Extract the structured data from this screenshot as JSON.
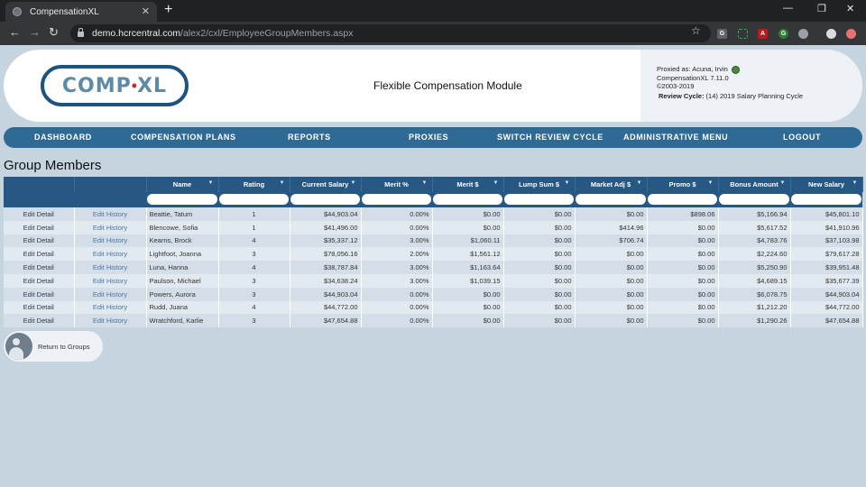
{
  "browser": {
    "tab_title": "CompensationXL",
    "tab_close": "✕",
    "new_tab": "+",
    "url_host": "demo.hcrcentral.com",
    "url_path": "/alex2/cxl/EmployeeGroupMembers.aspx"
  },
  "header": {
    "logo_left": "COMP",
    "logo_dot": "•",
    "logo_right": "XL",
    "module_title": "Flexible Compensation Module",
    "proxied_as": "Proxied as: Acuna, Irvin",
    "version": "CompensationXL 7.11.0",
    "copyright": "©2003-2019",
    "review_cycle_label": "Review Cycle:",
    "review_cycle_value": "(14) 2019 Salary Planning Cycle"
  },
  "nav": {
    "dashboard": "DASHBOARD",
    "plans": "COMPENSATION PLANS",
    "reports": "REPORTS",
    "proxies": "PROXIES",
    "switch": "SWITCH REVIEW CYCLE",
    "admin": "ADMINISTRATIVE MENU",
    "logout": "LOGOUT"
  },
  "page": {
    "title": "Group Members",
    "return_label": "Return to Groups"
  },
  "grid": {
    "filter_glyph": "▼",
    "columns": [
      "Name",
      "Rating",
      "Current Salary",
      "Merit %",
      "Merit $",
      "Lump Sum $",
      "Market Adj $",
      "Promo $",
      "Bonus Amount",
      "New Salary"
    ],
    "edit_detail": "Edit Detail",
    "edit_history": "Edit History",
    "rows": [
      [
        "Beattie, Tatum",
        "1",
        "$44,903.04",
        "0.00%",
        "$0.00",
        "$0.00",
        "$0.00",
        "$898.06",
        "$5,166.94",
        "$45,801.10"
      ],
      [
        "Blencowe, Sofia",
        "1",
        "$41,496.00",
        "0.00%",
        "$0.00",
        "$0.00",
        "$414.96",
        "$0.00",
        "$5,617.52",
        "$41,910.96"
      ],
      [
        "Kearns, Brock",
        "4",
        "$35,337.12",
        "3.00%",
        "$1,060.11",
        "$0.00",
        "$706.74",
        "$0.00",
        "$4,783.76",
        "$37,103.98"
      ],
      [
        "Lightfoot, Joanna",
        "3",
        "$78,056.16",
        "2.00%",
        "$1,561.12",
        "$0.00",
        "$0.00",
        "$0.00",
        "$2,224.60",
        "$79,617.28"
      ],
      [
        "Luna, Hanna",
        "4",
        "$38,787.84",
        "3.00%",
        "$1,163.64",
        "$0.00",
        "$0.00",
        "$0.00",
        "$5,250.90",
        "$39,951.48"
      ],
      [
        "Paulson, Michael",
        "3",
        "$34,638.24",
        "3.00%",
        "$1,039.15",
        "$0.00",
        "$0.00",
        "$0.00",
        "$4,689.15",
        "$35,677.39"
      ],
      [
        "Powers, Aurora",
        "3",
        "$44,903.04",
        "0.00%",
        "$0.00",
        "$0.00",
        "$0.00",
        "$0.00",
        "$6,078.75",
        "$44,903.04"
      ],
      [
        "Rudd, Juana",
        "4",
        "$44,772.00",
        "0.00%",
        "$0.00",
        "$0.00",
        "$0.00",
        "$0.00",
        "$1,212.20",
        "$44,772.00"
      ],
      [
        "Wratchford, Karlie",
        "3",
        "$47,654.88",
        "0.00%",
        "$0.00",
        "$0.00",
        "$0.00",
        "$0.00",
        "$1,290.26",
        "$47,654.88"
      ]
    ]
  }
}
